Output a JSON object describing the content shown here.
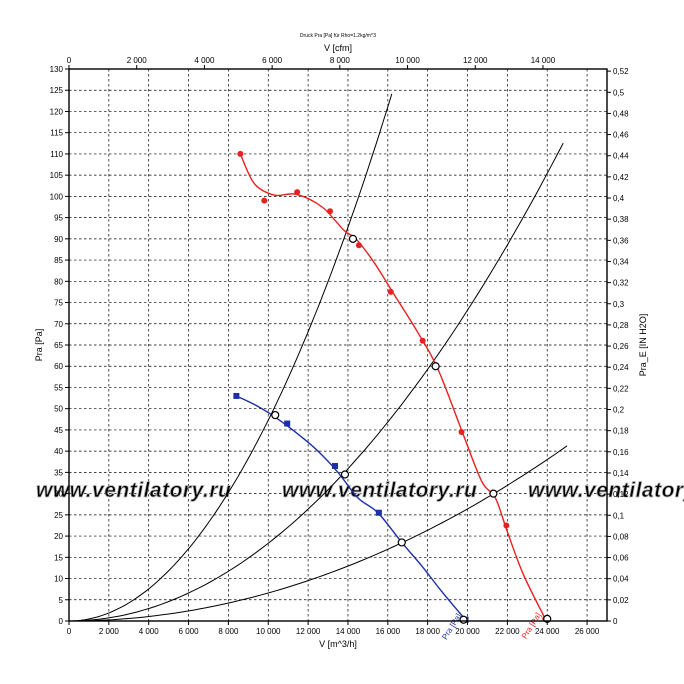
{
  "chart_data": {
    "type": "line",
    "title": "Druck Pra [Pa] für Rho=1.2kg/m^3",
    "xlabel": "V [m^3/h]",
    "ylabel": "Pra [Pa]",
    "x2label": "V [cfm]",
    "y2label": "Pra_E [IN H2O]",
    "xlim": [
      0,
      27000
    ],
    "ylim": [
      0,
      130
    ],
    "x2lim": [
      0,
      15891
    ],
    "y2lim": [
      0,
      0.522
    ],
    "grid": true,
    "x_ticks": [
      "0",
      "2 000",
      "4 000",
      "6 000",
      "8 000",
      "10 000",
      "12 000",
      "14 000",
      "16 000",
      "18 000",
      "20 000",
      "22 000",
      "24 000",
      "26 000"
    ],
    "y_ticks": [
      "0",
      "5",
      "10",
      "15",
      "20",
      "25",
      "30",
      "35",
      "40",
      "45",
      "50",
      "55",
      "60",
      "65",
      "70",
      "75",
      "80",
      "85",
      "90",
      "95",
      "100",
      "105",
      "110",
      "115",
      "120",
      "125",
      "130"
    ],
    "x2_ticks": [
      "0",
      "2 000",
      "4 000",
      "6 000",
      "8 000",
      "10 000",
      "12 000",
      "14 000"
    ],
    "y2_ticks": [
      "0",
      "0,02",
      "0,04",
      "0,06",
      "0,08",
      "0,1",
      "0,12",
      "0,14",
      "0,16",
      "0,18",
      "0,2",
      "0,22",
      "0,24",
      "0,26",
      "0,28",
      "0,3",
      "0,32",
      "0,34",
      "0,36",
      "0,38",
      "0,4",
      "0,42",
      "0,44",
      "0,46",
      "0,48",
      "0,5",
      "0,52"
    ],
    "series": [
      {
        "name": "Pra [Pa]",
        "color": "#e8211f",
        "marker": "circle",
        "x": [
          8600,
          9800,
          11450,
          13100,
          14550,
          16150,
          17750,
          19700,
          21950,
          23900
        ],
        "y": [
          110,
          99,
          101,
          96.5,
          88.5,
          77.5,
          66,
          44.5,
          22.5,
          0.5
        ],
        "curve": [
          [
            8600,
            110
          ],
          [
            9300,
            103
          ],
          [
            10300,
            100.3
          ],
          [
            11400,
            100.5
          ],
          [
            12700,
            97.5
          ],
          [
            13800,
            92
          ],
          [
            14400,
            90
          ],
          [
            15300,
            84.5
          ],
          [
            16300,
            77
          ],
          [
            17500,
            68
          ],
          [
            18500,
            59.5
          ],
          [
            19700,
            45
          ],
          [
            20700,
            33
          ],
          [
            21400,
            29
          ],
          [
            22000,
            21
          ],
          [
            22800,
            11
          ],
          [
            23900,
            0.5
          ]
        ]
      },
      {
        "name": "Pra [Pa]",
        "color": "#1d2fa6",
        "marker": "square",
        "x": [
          8400,
          10950,
          13350,
          15550,
          19900
        ],
        "y": [
          53,
          46.5,
          36.5,
          25.5,
          0.3
        ],
        "curve": [
          [
            8400,
            53
          ],
          [
            9500,
            50.5
          ],
          [
            10500,
            47.5
          ],
          [
            11500,
            44
          ],
          [
            12500,
            40
          ],
          [
            13500,
            35
          ],
          [
            14500,
            29
          ],
          [
            15500,
            25.5
          ],
          [
            16700,
            18.5
          ],
          [
            17700,
            13
          ],
          [
            18700,
            7
          ],
          [
            19900,
            0.3
          ]
        ]
      }
    ],
    "system_curves": [
      {
        "k": 4.73e-07,
        "x_max": 16200
      },
      {
        "k": 1.83e-07,
        "x_max": 24800
      },
      {
        "k": 6.6e-08,
        "x_max": 25000
      }
    ],
    "operating_points": [
      [
        14250,
        90
      ],
      [
        18400,
        60
      ],
      [
        21300,
        30
      ],
      [
        10350,
        48.5
      ],
      [
        13850,
        34.5
      ],
      [
        16700,
        18.5
      ],
      [
        24000,
        0.5
      ],
      [
        19800,
        0.3
      ]
    ],
    "watermark": "www.ventilatory.ru"
  }
}
